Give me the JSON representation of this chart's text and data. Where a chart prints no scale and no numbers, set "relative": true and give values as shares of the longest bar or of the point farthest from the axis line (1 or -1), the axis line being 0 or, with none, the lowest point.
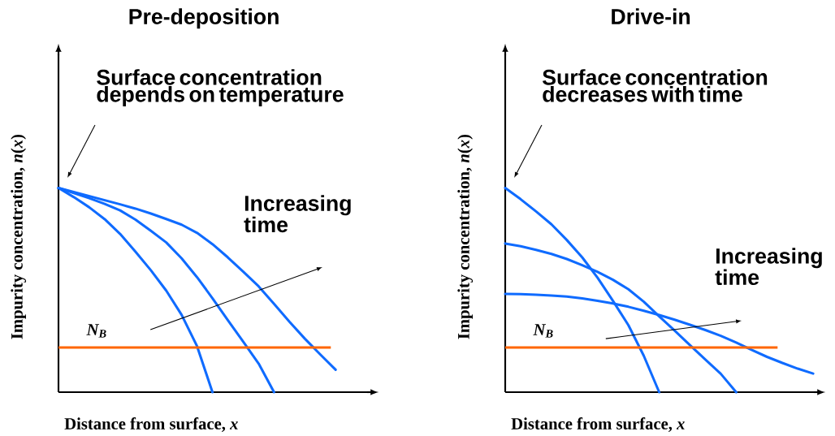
{
  "chart_data": [
    {
      "type": "line",
      "relative": true,
      "title": "Pre-deposition",
      "xlabel": "Distance from surface, *x*",
      "ylabel": "Impurity concentration, *n*(*x*)",
      "categories": [
        null,
        null,
        null,
        null,
        null,
        null,
        null,
        null,
        null,
        null,
        null,
        null,
        null,
        null,
        null,
        null,
        null,
        null,
        null,
        null,
        null
      ],
      "annotations": [
        "Surface concentration depends on temperature",
        "Increasing time"
      ],
      "ref_lines": [
        {
          "axis": "y",
          "value": 0.219,
          "label": "N$_{B}$",
          "color": "#ff6600"
        }
      ],
      "series": [
        {
          "color": "#0f6bff",
          "values": [
            1,
            0.955,
            0.905,
            0.847,
            0.775,
            0.688,
            0.597,
            0.497,
            0.378,
            0.225,
            0,
            null,
            null,
            null,
            null,
            null,
            null,
            null,
            null,
            null,
            null
          ]
        },
        {
          "color": "#0f6bff",
          "values": [
            1,
            0.975,
            0.95,
            0.922,
            0.89,
            0.845,
            0.79,
            0.733,
            0.655,
            0.563,
            0.46,
            0.352,
            0.247,
            0.14,
            0,
            null,
            null,
            null,
            null,
            null,
            null
          ]
        },
        {
          "color": "#0f6bff",
          "values": [
            1,
            0.98,
            0.96,
            0.94,
            0.92,
            0.899,
            0.875,
            0.848,
            0.82,
            0.78,
            0.725,
            0.66,
            0.59,
            0.518,
            0.432,
            0.345,
            0.262,
            0.185,
            0.11,
            null,
            null
          ]
        }
      ]
    },
    {
      "type": "line",
      "relative": true,
      "title": "Drive-in",
      "xlabel": "Distance from surface, *x*",
      "ylabel": "Impurity concentration, *n*(*x*)",
      "categories": [
        null,
        null,
        null,
        null,
        null,
        null,
        null,
        null,
        null,
        null,
        null,
        null,
        null,
        null,
        null,
        null,
        null,
        null,
        null,
        null,
        null
      ],
      "annotations": [
        "Surface concentration decreases with time",
        "Increasing time"
      ],
      "ref_lines": [
        {
          "axis": "y",
          "value": 0.219,
          "label": "N$_{B}$",
          "color": "#ff6600"
        }
      ],
      "series": [
        {
          "color": "#0f6bff",
          "values": [
            1,
            0.945,
            0.885,
            0.822,
            0.745,
            0.66,
            0.56,
            0.447,
            0.328,
            0.178,
            0,
            null,
            null,
            null,
            null,
            null,
            null,
            null,
            null,
            null,
            null
          ]
        },
        {
          "color": "#0f6bff",
          "values": [
            0.728,
            0.715,
            0.697,
            0.677,
            0.652,
            0.622,
            0.589,
            0.55,
            0.504,
            0.443,
            0.371,
            0.302,
            0.23,
            0.16,
            0.09,
            0,
            null,
            null,
            null,
            null,
            null
          ]
        },
        {
          "color": "#0f6bff",
          "values": [
            0.481,
            0.48,
            0.477,
            0.473,
            0.468,
            0.459,
            0.447,
            0.434,
            0.418,
            0.399,
            0.378,
            0.355,
            0.33,
            0.304,
            0.276,
            0.243,
            0.207,
            0.173,
            0.143,
            0.115,
            0.091
          ]
        }
      ]
    }
  ]
}
